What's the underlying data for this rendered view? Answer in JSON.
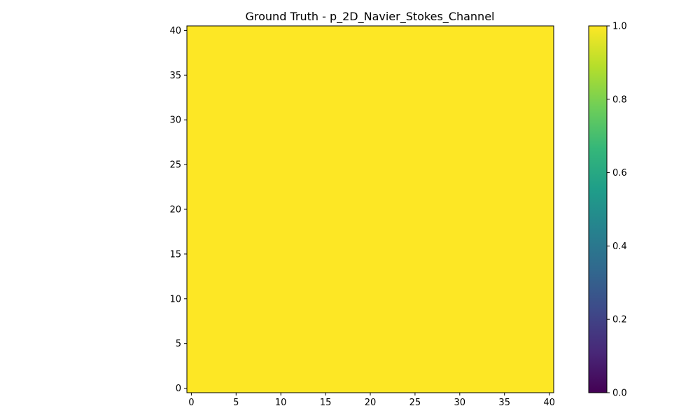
{
  "chart_data": {
    "type": "heatmap",
    "title": "Ground Truth - p_2D_Navier_Stokes_Channel",
    "xlabel": "",
    "ylabel": "",
    "xlim": [
      -0.5,
      40.5
    ],
    "ylim": [
      -0.5,
      40.5
    ],
    "x_ticks": [
      0,
      5,
      10,
      15,
      20,
      25,
      30,
      35,
      40
    ],
    "y_ticks": [
      0,
      5,
      10,
      15,
      20,
      25,
      30,
      35,
      40
    ],
    "grid_shape": [
      41,
      41
    ],
    "field_value": 1.0,
    "colormap": "viridis",
    "colorbar": {
      "vmin": 0.0,
      "vmax": 1.0,
      "ticks": [
        "0.0",
        "0.2",
        "0.4",
        "0.6",
        "0.8",
        "1.0"
      ]
    },
    "grid": false,
    "legend": "none"
  },
  "colors": {
    "viridis": [
      "#440154",
      "#482878",
      "#3e4989",
      "#31688e",
      "#26828e",
      "#1f9e89",
      "#35b779",
      "#6ece58",
      "#b5de2b",
      "#fde725"
    ]
  }
}
